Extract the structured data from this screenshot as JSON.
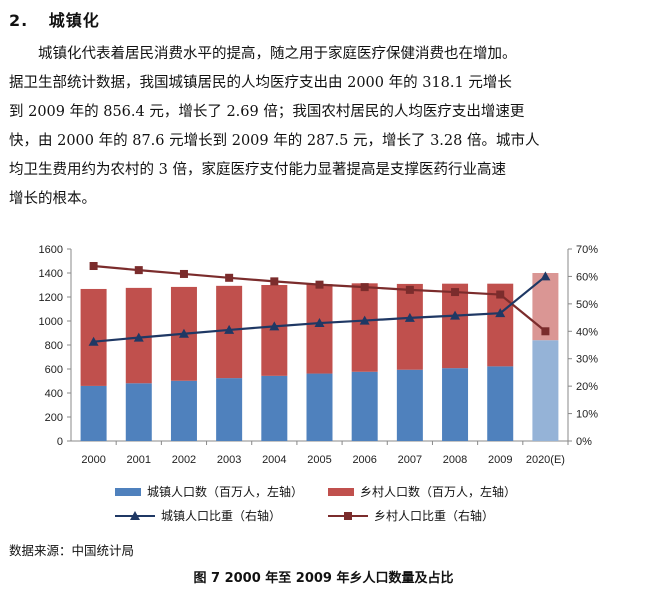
{
  "section": {
    "number": "2.",
    "title": "城镇化"
  },
  "paragraph_lines": [
    "城镇化代表着居民消费水平的提高，随之用于家庭医疗保健消费也在增加。",
    "据卫生部统计数据，我国城镇居民的人均医疗支出由 2000 年的 318.1 元增长",
    "到 2009 年的 856.4 元，增长了 2.69 倍；我国农村居民的人均医疗支出增速更",
    "快，由 2000 年的 87.6 元增长到 2009 年的 287.5 元，增长了 3.28 倍。城市人",
    "均卫生费用约为农村的 3 倍，家庭医疗支付能力显著提高是支撑医药行业高速",
    "增长的根本。"
  ],
  "chart_data": {
    "type": "bar",
    "stacked": true,
    "categories": [
      "2000",
      "2001",
      "2002",
      "2003",
      "2004",
      "2005",
      "2006",
      "2007",
      "2008",
      "2009",
      "2020(E)"
    ],
    "series": [
      {
        "name": "城镇人口数（百万人，左轴）",
        "kind": "bar",
        "axis": "left",
        "values": [
          459,
          481,
          502,
          524,
          543,
          562,
          577,
          594,
          607,
          622,
          840
        ],
        "color": "#4F81BD"
      },
      {
        "name": "乡村人口数（百万人，左轴）",
        "kind": "bar",
        "axis": "left",
        "values": [
          808,
          795,
          782,
          769,
          757,
          745,
          737,
          715,
          704,
          689,
          560
        ],
        "color": "#C0504D"
      },
      {
        "name": "城镇人口比重（右轴）",
        "kind": "line",
        "axis": "right",
        "values": [
          36.2,
          37.7,
          39.1,
          40.5,
          41.8,
          43.0,
          43.9,
          44.9,
          45.7,
          46.6,
          60.0
        ],
        "color": "#1F3864",
        "marker": "triangle"
      },
      {
        "name": "乡村人口比重（右轴）",
        "kind": "line",
        "axis": "right",
        "values": [
          63.8,
          62.3,
          60.9,
          59.5,
          58.2,
          57.0,
          56.1,
          55.1,
          54.3,
          53.4,
          40.0
        ],
        "color": "#7B2C2C",
        "marker": "square"
      }
    ],
    "estimate_colors": {
      "urban": "#95B3D7",
      "rural": "#DA9694"
    },
    "left_axis": {
      "min": 0,
      "max": 1600,
      "ticks": [
        "0",
        "200",
        "400",
        "600",
        "800",
        "1000",
        "1200",
        "1400",
        "1600"
      ]
    },
    "right_axis": {
      "min": 0,
      "max": 70,
      "ticks": [
        "0%",
        "10%",
        "20%",
        "30%",
        "40%",
        "50%",
        "60%",
        "70%"
      ]
    },
    "grid": false,
    "legend_position": "bottom"
  },
  "source": "数据来源：中国统计局",
  "caption": "图 7 2000 年至 2009 年乡人口数量及占比"
}
